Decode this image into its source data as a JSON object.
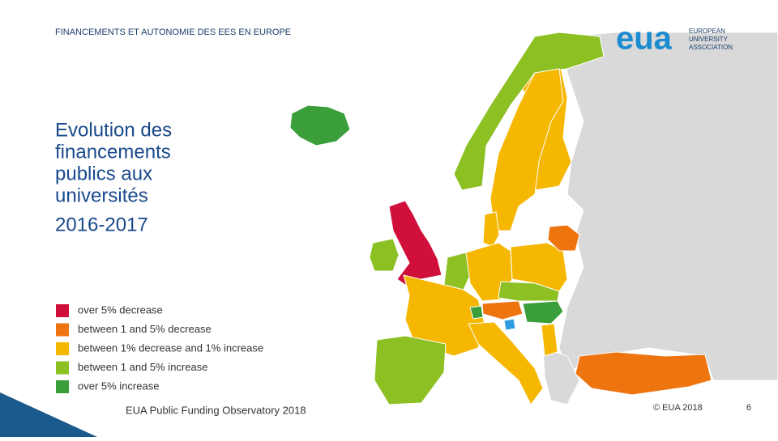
{
  "header": {
    "title": "FINANCEMENTS ET AUTONOMIE DES EES EN EUROPE"
  },
  "logo": {
    "mark": "eua",
    "lines": [
      "EUROPEAN",
      "UNIVERSITY",
      "ASSOCIATION"
    ]
  },
  "title": {
    "lines": [
      "Evolution des",
      "financements",
      "publics aux",
      "universités"
    ],
    "period": "2016-2017"
  },
  "legend": {
    "items": [
      {
        "label": "over 5% decrease",
        "color": "#d0103a"
      },
      {
        "label": "between 1 and 5% decrease",
        "color": "#ee7410"
      },
      {
        "label": "between 1% decrease and 1% increase",
        "color": "#f5b700"
      },
      {
        "label": "between 1 and 5% increase",
        "color": "#8cc023"
      },
      {
        "label": "over 5% increase",
        "color": "#3a9e3a"
      }
    ]
  },
  "footer": {
    "source": "EUA Public Funding Observatory 2018",
    "copyright": "© EUA 2018",
    "page": "6"
  }
}
